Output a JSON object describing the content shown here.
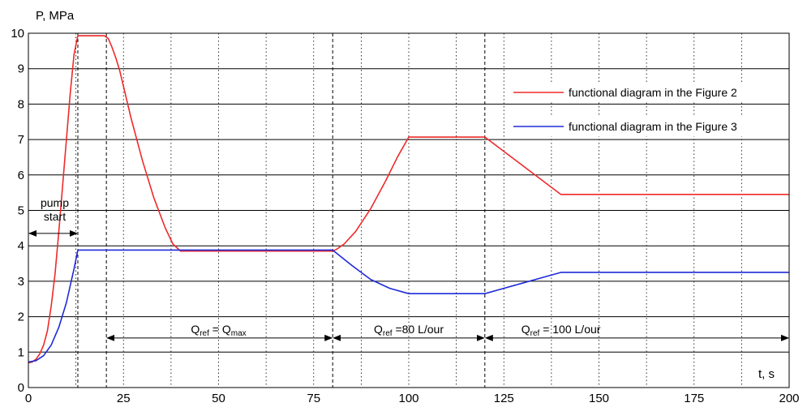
{
  "chart_data": {
    "type": "line",
    "title": "",
    "ylabel": "P, MPa",
    "xlabel": "t, s",
    "xlim": [
      0,
      200
    ],
    "ylim": [
      0,
      10
    ],
    "x_ticks": [
      0,
      25,
      50,
      75,
      100,
      125,
      150,
      175,
      200
    ],
    "y_ticks": [
      0,
      1,
      2,
      3,
      4,
      5,
      6,
      7,
      8,
      9,
      10
    ],
    "x_grid_dashed": [
      12.5,
      37.5,
      62.5,
      87.5,
      112.5,
      137.5,
      162.5,
      187.5
    ],
    "grid": true,
    "legend": "right",
    "series": [
      {
        "name": "functional diagram in the Figure 2",
        "color": "#ee2a2a",
        "points": [
          [
            0,
            0.7
          ],
          [
            1,
            0.72
          ],
          [
            2,
            0.8
          ],
          [
            3,
            0.95
          ],
          [
            4,
            1.2
          ],
          [
            5,
            1.6
          ],
          [
            6,
            2.3
          ],
          [
            7,
            3.2
          ],
          [
            8,
            4.4
          ],
          [
            9,
            5.7
          ],
          [
            10,
            7.0
          ],
          [
            11,
            8.3
          ],
          [
            12,
            9.4
          ],
          [
            13,
            9.93
          ],
          [
            20,
            9.93
          ],
          [
            21,
            9.85
          ],
          [
            22,
            9.6
          ],
          [
            23,
            9.3
          ],
          [
            24,
            8.95
          ],
          [
            25,
            8.5
          ],
          [
            27,
            7.6
          ],
          [
            30,
            6.4
          ],
          [
            33,
            5.35
          ],
          [
            36,
            4.5
          ],
          [
            38,
            4.05
          ],
          [
            40,
            3.85
          ],
          [
            80,
            3.85
          ],
          [
            81,
            3.9
          ],
          [
            83,
            4.05
          ],
          [
            86,
            4.4
          ],
          [
            90,
            5.05
          ],
          [
            94,
            5.85
          ],
          [
            97,
            6.5
          ],
          [
            100,
            7.07
          ],
          [
            120,
            7.07
          ],
          [
            140,
            5.45
          ],
          [
            200,
            5.45
          ]
        ]
      },
      {
        "name": "functional diagram in the Figure 3",
        "color": "#1e2ad8",
        "points": [
          [
            0,
            0.72
          ],
          [
            2,
            0.76
          ],
          [
            4,
            0.9
          ],
          [
            6,
            1.2
          ],
          [
            8,
            1.7
          ],
          [
            10,
            2.4
          ],
          [
            12,
            3.35
          ],
          [
            13,
            3.88
          ],
          [
            20,
            3.88
          ],
          [
            80,
            3.88
          ],
          [
            85,
            3.45
          ],
          [
            90,
            3.05
          ],
          [
            95,
            2.8
          ],
          [
            100,
            2.65
          ],
          [
            120,
            2.65
          ],
          [
            125,
            2.8
          ],
          [
            130,
            2.95
          ],
          [
            135,
            3.1
          ],
          [
            140,
            3.25
          ],
          [
            200,
            3.25
          ]
        ]
      }
    ],
    "vlines_dashed": [
      13,
      20.5,
      80,
      120
    ],
    "annotations": [
      {
        "id": "pump",
        "text_lines": [
          "pump",
          "start"
        ],
        "arrow_from": 0,
        "arrow_to": 13,
        "arrow_y": 4.35,
        "label_y": 5.1
      },
      {
        "id": "q1",
        "q_sub": "ref",
        "rhs": " = Q",
        "rhs_sub": "max",
        "tail": "",
        "arrow_from": 20.5,
        "arrow_to": 80,
        "arrow_y": 1.4,
        "label_x": 50
      },
      {
        "id": "q2",
        "q_sub": "ref",
        "rhs": " =80 L/our",
        "rhs_sub": "",
        "tail": "",
        "arrow_from": 80,
        "arrow_to": 120,
        "arrow_y": 1.4,
        "label_x": 100
      },
      {
        "id": "q3",
        "q_sub": "ref",
        "rhs": " = 100 L/our",
        "rhs_sub": "",
        "tail": "",
        "arrow_from": 120,
        "arrow_to": 200,
        "arrow_y": 1.4,
        "label_x": 140
      }
    ]
  }
}
